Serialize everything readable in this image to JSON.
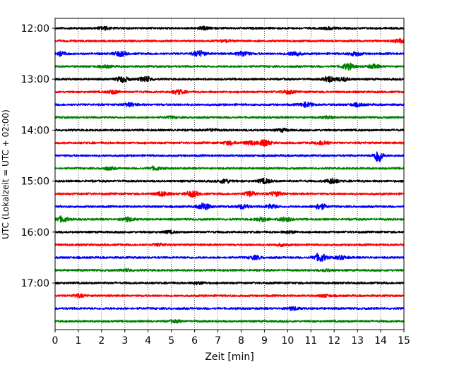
{
  "chart_data": {
    "type": "line",
    "title": "",
    "xlabel": "Zeit  [min]",
    "ylabel": "UTC (Lokalzeit = UTC + 02:00)",
    "x_ticks": [
      0,
      1,
      2,
      3,
      4,
      5,
      6,
      7,
      8,
      9,
      10,
      11,
      12,
      13,
      14,
      15
    ],
    "xlim": [
      0,
      15
    ],
    "grid": "vertical dotted",
    "y_tick_labels": [
      "12:00",
      "13:00",
      "14:00",
      "15:00",
      "16:00",
      "17:00"
    ],
    "trace_colors": [
      "#000000",
      "#ff0000",
      "#0000ff",
      "#008000"
    ],
    "traces": [
      {
        "start": "12:00",
        "color": "#000000",
        "bursts": [
          {
            "t": 2.1,
            "amp": 0.8
          },
          {
            "t": 6.4,
            "amp": 0.7
          },
          {
            "t": 11.8,
            "amp": 0.6
          }
        ]
      },
      {
        "start": "12:15",
        "color": "#ff0000",
        "bursts": [
          {
            "t": 7.3,
            "amp": 0.6
          },
          {
            "t": 14.8,
            "amp": 1.0
          }
        ]
      },
      {
        "start": "12:30",
        "color": "#0000ff",
        "bursts": [
          {
            "t": 0.2,
            "amp": 1.2
          },
          {
            "t": 2.8,
            "amp": 1.4
          },
          {
            "t": 6.2,
            "amp": 1.6
          },
          {
            "t": 8.1,
            "amp": 1.4
          },
          {
            "t": 10.3,
            "amp": 1.3
          },
          {
            "t": 12.9,
            "amp": 1.1
          }
        ]
      },
      {
        "start": "12:45",
        "color": "#008000",
        "bursts": [
          {
            "t": 2.2,
            "amp": 0.6
          },
          {
            "t": 12.6,
            "amp": 1.8
          },
          {
            "t": 13.7,
            "amp": 1.0
          }
        ]
      },
      {
        "start": "13:00",
        "color": "#000000",
        "bursts": [
          {
            "t": 2.9,
            "amp": 1.6
          },
          {
            "t": 3.9,
            "amp": 1.5
          },
          {
            "t": 11.8,
            "amp": 1.6
          },
          {
            "t": 12.4,
            "amp": 1.0
          }
        ]
      },
      {
        "start": "13:15",
        "color": "#ff0000",
        "bursts": [
          {
            "t": 2.5,
            "amp": 0.9
          },
          {
            "t": 5.3,
            "amp": 1.2
          },
          {
            "t": 10.0,
            "amp": 1.0
          }
        ]
      },
      {
        "start": "13:30",
        "color": "#0000ff",
        "bursts": [
          {
            "t": 3.2,
            "amp": 0.9
          },
          {
            "t": 10.8,
            "amp": 1.3
          },
          {
            "t": 13.0,
            "amp": 0.8
          }
        ]
      },
      {
        "start": "13:45",
        "color": "#008000",
        "bursts": [
          {
            "t": 5.0,
            "amp": 0.5
          },
          {
            "t": 11.7,
            "amp": 0.6
          }
        ]
      },
      {
        "start": "14:00",
        "color": "#000000",
        "bursts": [
          {
            "t": 6.7,
            "amp": 0.6
          },
          {
            "t": 9.8,
            "amp": 0.8
          }
        ]
      },
      {
        "start": "14:15",
        "color": "#ff0000",
        "bursts": [
          {
            "t": 7.5,
            "amp": 0.9
          },
          {
            "t": 8.4,
            "amp": 1.0
          },
          {
            "t": 9.0,
            "amp": 1.6
          },
          {
            "t": 11.5,
            "amp": 1.2
          }
        ]
      },
      {
        "start": "14:30",
        "color": "#0000ff",
        "bursts": [
          {
            "t": 13.9,
            "amp": 4.5
          }
        ]
      },
      {
        "start": "14:45",
        "color": "#008000",
        "bursts": [
          {
            "t": 2.3,
            "amp": 0.7
          },
          {
            "t": 4.3,
            "amp": 0.9
          }
        ]
      },
      {
        "start": "15:00",
        "color": "#000000",
        "bursts": [
          {
            "t": 7.3,
            "amp": 1.1
          },
          {
            "t": 9.0,
            "amp": 1.3
          },
          {
            "t": 11.9,
            "amp": 1.5
          }
        ]
      },
      {
        "start": "15:15",
        "color": "#ff0000",
        "bursts": [
          {
            "t": 4.6,
            "amp": 1.3
          },
          {
            "t": 5.9,
            "amp": 1.6
          },
          {
            "t": 8.4,
            "amp": 1.3
          },
          {
            "t": 9.5,
            "amp": 1.2
          }
        ]
      },
      {
        "start": "15:30",
        "color": "#0000ff",
        "bursts": [
          {
            "t": 6.4,
            "amp": 2.0
          },
          {
            "t": 8.1,
            "amp": 1.2
          },
          {
            "t": 9.3,
            "amp": 1.1
          },
          {
            "t": 11.4,
            "amp": 1.6
          }
        ]
      },
      {
        "start": "15:45",
        "color": "#008000",
        "bursts": [
          {
            "t": 0.3,
            "amp": 1.6
          },
          {
            "t": 3.1,
            "amp": 1.2
          },
          {
            "t": 8.9,
            "amp": 1.0
          },
          {
            "t": 9.9,
            "amp": 1.2
          }
        ]
      },
      {
        "start": "16:00",
        "color": "#000000",
        "bursts": [
          {
            "t": 4.9,
            "amp": 0.6
          },
          {
            "t": 10.1,
            "amp": 0.6
          }
        ]
      },
      {
        "start": "16:15",
        "color": "#ff0000",
        "bursts": [
          {
            "t": 4.5,
            "amp": 0.7
          },
          {
            "t": 9.7,
            "amp": 0.6
          }
        ]
      },
      {
        "start": "16:30",
        "color": "#0000ff",
        "bursts": [
          {
            "t": 8.6,
            "amp": 1.0
          },
          {
            "t": 11.4,
            "amp": 2.4
          },
          {
            "t": 12.3,
            "amp": 0.9
          }
        ]
      },
      {
        "start": "16:45",
        "color": "#008000",
        "bursts": [
          {
            "t": 3.1,
            "amp": 0.6
          },
          {
            "t": 11.7,
            "amp": 0.5
          }
        ]
      },
      {
        "start": "17:00",
        "color": "#000000",
        "bursts": [
          {
            "t": 6.2,
            "amp": 0.6
          }
        ]
      },
      {
        "start": "17:15",
        "color": "#ff0000",
        "bursts": [
          {
            "t": 1.0,
            "amp": 0.9
          },
          {
            "t": 11.6,
            "amp": 0.6
          }
        ]
      },
      {
        "start": "17:30",
        "color": "#0000ff",
        "bursts": [
          {
            "t": 10.2,
            "amp": 0.9
          }
        ]
      },
      {
        "start": "17:45",
        "color": "#008000",
        "bursts": [
          {
            "t": 5.2,
            "amp": 0.6
          }
        ]
      }
    ]
  }
}
